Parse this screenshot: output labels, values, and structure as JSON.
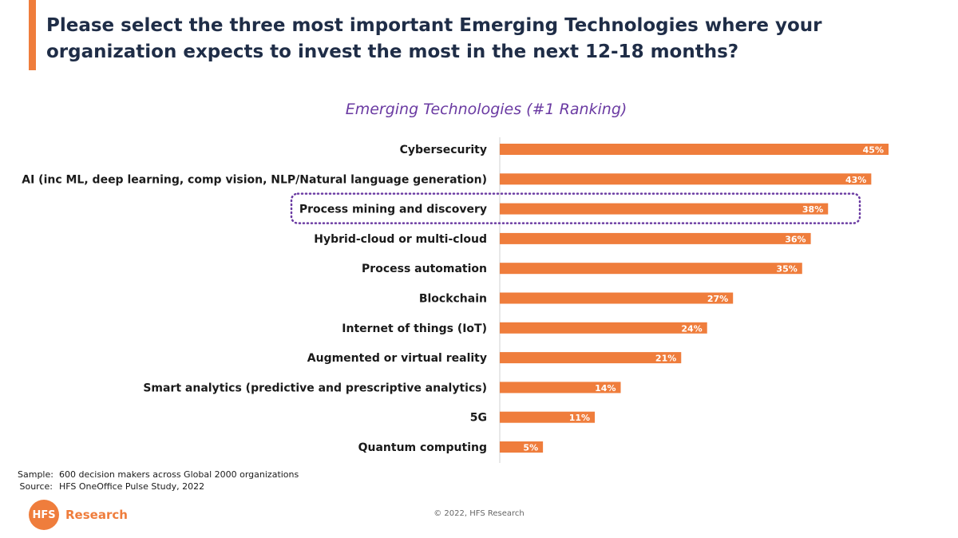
{
  "page": {
    "title": "Please select the three most important Emerging Technologies where your organization expects to invest the most in the next 12-18 months?",
    "footer": {
      "sample_label": "Sample:",
      "sample_value": "600 decision makers across Global 2000 organizations",
      "source_label": "Source:",
      "source_value": "HFS OneOffice Pulse Study, 2022"
    },
    "logo": {
      "mark": "HFS",
      "text": "Research"
    },
    "copyright": "© 2022, HFS Research"
  },
  "colors": {
    "accent": "#ef7d3c",
    "title": "#1f2d47",
    "chart_title": "#6a3aa2",
    "highlight_outline": "#6a3aa2"
  },
  "chart_data": {
    "type": "bar",
    "orientation": "horizontal",
    "title": "Emerging Technologies (#1 Ranking)",
    "categories": [
      "Cybersecurity",
      "AI (inc ML, deep learning, comp vision, NLP/Natural language generation)",
      "Process mining and discovery",
      "Hybrid-cloud or multi-cloud",
      "Process automation",
      "Blockchain",
      "Internet of things (IoT)",
      "Augmented or virtual reality",
      "Smart analytics (predictive and prescriptive analytics)",
      "5G",
      "Quantum computing"
    ],
    "values": [
      45,
      43,
      38,
      36,
      35,
      27,
      24,
      21,
      14,
      11,
      5
    ],
    "labels": [
      "45%",
      "43%",
      "38%",
      "36%",
      "35%",
      "27%",
      "24%",
      "21%",
      "14%",
      "11%",
      "5%"
    ],
    "unit": "%",
    "highlighted_category": "Process mining and discovery",
    "xlim": [
      0,
      45
    ],
    "grid": false,
    "legend": "none"
  }
}
